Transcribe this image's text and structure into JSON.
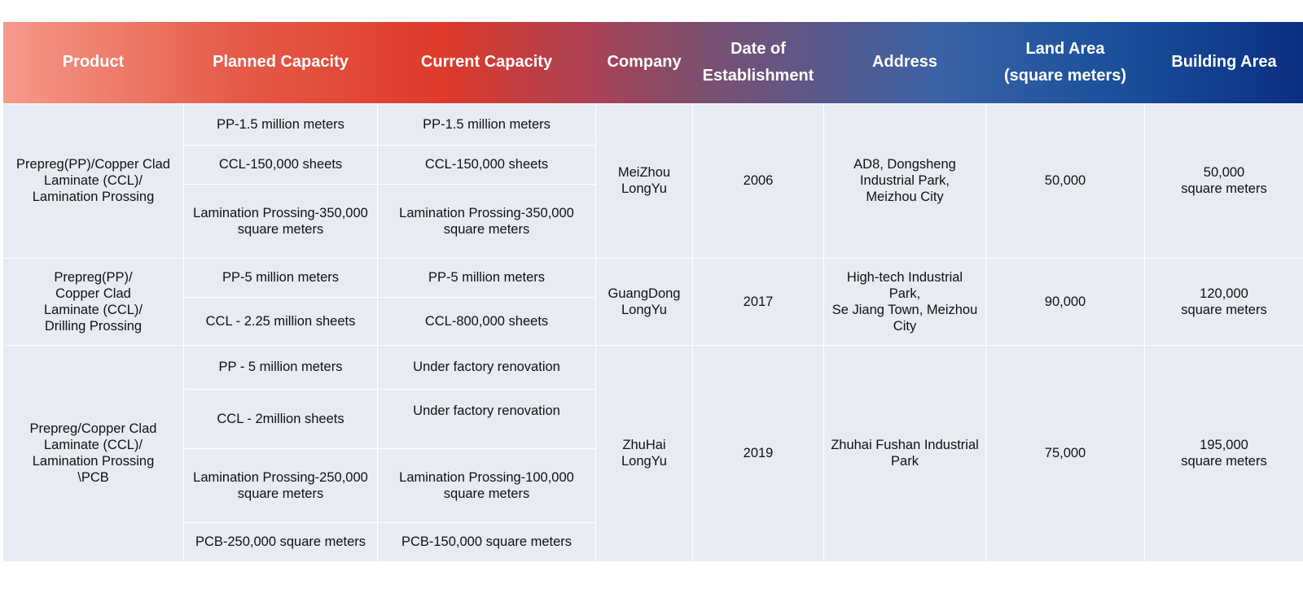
{
  "headers": {
    "product": "Product",
    "planned": "Planned Capacity",
    "current": "Current Capacity",
    "company": "Company",
    "date_l1": "Date of",
    "date_l2": "Establishment",
    "address": "Address",
    "land_l1": "Land Area",
    "land_l2": "(square meters)",
    "building": "Building Area"
  },
  "rows": [
    {
      "product": [
        "Prepreg(PP)/Copper Clad",
        "Laminate (CCL)/",
        "Lamination Prossing"
      ],
      "capacity": [
        {
          "planned": [
            "PP-1.5 million meters"
          ],
          "current": [
            "PP-1.5 million meters"
          ]
        },
        {
          "planned": [
            "CCL-150,000 sheets"
          ],
          "current": [
            "CCL-150,000 sheets"
          ]
        },
        {
          "planned": [
            "Lamination Prossing-350,000",
            "square meters"
          ],
          "current": [
            "Lamination Prossing-350,000",
            "square meters"
          ]
        }
      ],
      "company": [
        "MeiZhou",
        "LongYu"
      ],
      "date": "2006",
      "address": [
        "AD8, Dongsheng",
        "Industrial Park,",
        "Meizhou City"
      ],
      "land": "50,000",
      "building": [
        "50,000",
        "square meters"
      ]
    },
    {
      "product": [
        "Prepreg(PP)/",
        "Copper Clad",
        "Laminate (CCL)/",
        "Drilling Prossing"
      ],
      "capacity": [
        {
          "planned": [
            "PP-5 million meters"
          ],
          "current": [
            "PP-5 million meters"
          ]
        },
        {
          "planned": [
            "CCL - 2.25 million sheets"
          ],
          "current": [
            "CCL-800,000 sheets"
          ]
        }
      ],
      "company": [
        "GuangDong",
        "LongYu"
      ],
      "date": "2017",
      "address": [
        "High-tech Industrial Park,",
        "Se Jiang Town, Meizhou",
        "City"
      ],
      "land": "90,000",
      "building": [
        "120,000",
        "square meters"
      ]
    },
    {
      "product": [
        "Prepreg/Copper Clad",
        "Laminate (CCL)/",
        "Lamination Prossing",
        "\\PCB"
      ],
      "capacity": [
        {
          "planned": [
            "PP - 5 million meters"
          ],
          "current": [
            "Under factory renovation"
          ]
        },
        {
          "planned": [
            "CCL - 2million sheets"
          ],
          "current": [
            "Under factory renovation"
          ]
        },
        {
          "planned": [
            "Lamination Prossing-250,000",
            "square meters"
          ],
          "current": [
            "Lamination Prossing-100,000",
            "square meters"
          ]
        },
        {
          "planned": [
            "PCB-250,000 square meters"
          ],
          "current": [
            "PCB-150,000 square meters"
          ]
        }
      ],
      "company": [
        "ZhuHai",
        "LongYu"
      ],
      "date": "2019",
      "address": [
        "Zhuhai Fushan Industrial",
        "Park"
      ],
      "land": "75,000",
      "building": [
        "195,000",
        "square meters"
      ]
    }
  ]
}
